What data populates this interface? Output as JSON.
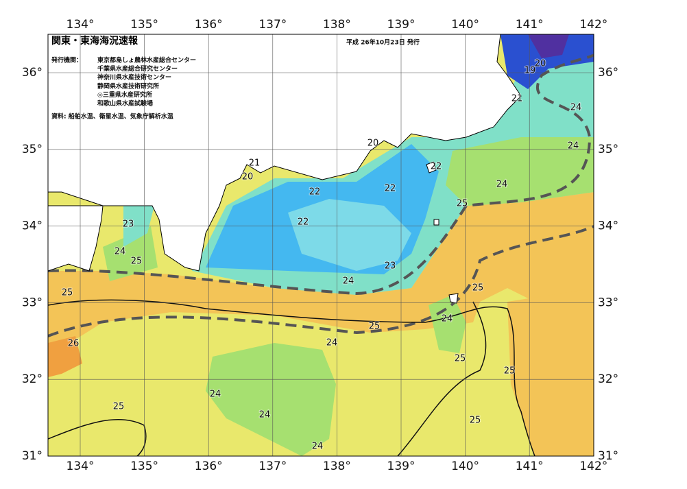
{
  "title": "関東・東海海況速報",
  "issued": "平成 26年10月23日 発行",
  "agencies_label": "発行機関：",
  "agencies": [
    "東京都島しょ農林水産総合センター",
    "千葉県水産総合研究センター",
    "神奈川県水産技術センター",
    "静岡県水産技術研究所",
    "◎三重県水産研究所",
    "和歌山県水産試験場"
  ],
  "source": "資料: 船舶水温、衛星水温、気象庁解析水温",
  "lon_labels": [
    "134°",
    "135°",
    "136°",
    "137°",
    "138°",
    "139°",
    "140°",
    "141°",
    "142°"
  ],
  "lat_labels": [
    "31°",
    "32°",
    "33°",
    "34°",
    "35°",
    "36°"
  ],
  "contour_labels": [
    20,
    19,
    21,
    24,
    24,
    20,
    22,
    22,
    21,
    20,
    22,
    24,
    25,
    22,
    23,
    24,
    25,
    23,
    24,
    25,
    25,
    24,
    25,
    26,
    24,
    25,
    25,
    24,
    25,
    24,
    25,
    24
  ]
}
